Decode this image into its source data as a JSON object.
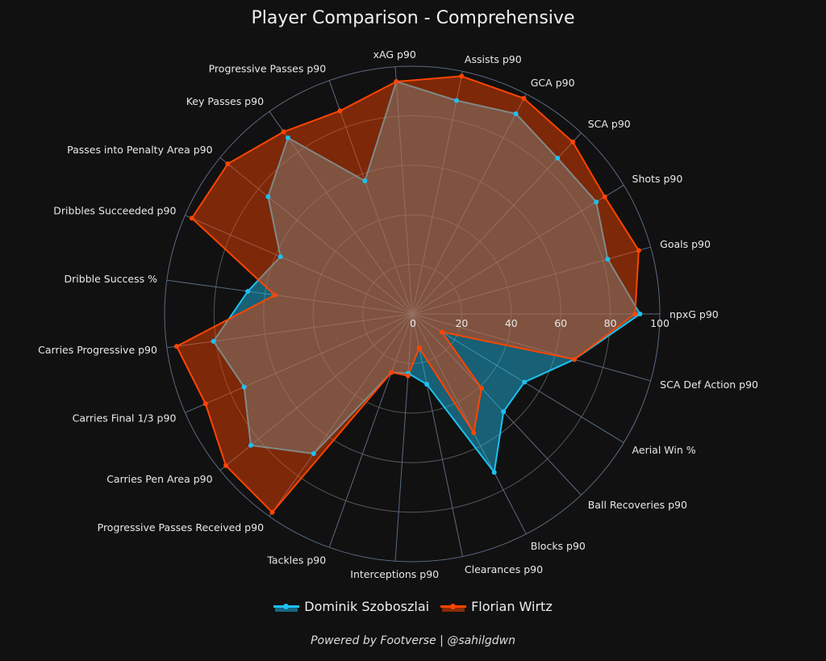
{
  "chart_data": {
    "type": "radar",
    "title": "Player Comparison - Comprehensive",
    "axes": [
      "npxG p90",
      "Goals p90",
      "Shots p90",
      "SCA p90",
      "GCA p90",
      "Assists p90",
      "xAG p90",
      "Progressive Passes p90",
      "Key Passes p90",
      "Passes into Penalty Area p90",
      "Dribbles Succeeded p90",
      "Dribble Success %",
      "Carries Progressive p90",
      "Carries Final 1/3 p90",
      "Carries Pen Area p90",
      "Progressive Passes Received p90",
      "Tackles p90",
      "Interceptions p90",
      "Clearances p90",
      "Blocks p90",
      "Ball Recoveries p90",
      "Aerial Win %",
      "SCA Def Action p90"
    ],
    "radial_ticks": [
      "0",
      "20",
      "40",
      "60",
      "80",
      "100"
    ],
    "rlim": [
      0,
      100
    ],
    "series": [
      {
        "name": "Dominik Szoboszlai",
        "color": "#1ec0f0",
        "values": [
          92,
          82,
          87,
          86,
          91,
          88,
          94,
          57,
          87,
          75,
          58,
          67,
          81,
          74,
          84,
          69,
          25,
          24,
          29,
          72,
          54,
          53,
          68
        ]
      },
      {
        "name": "Florian Wirtz",
        "color": "#ff4500",
        "values": [
          90,
          95,
          91,
          95,
          98,
          98,
          94,
          87,
          90,
          96,
          97,
          56,
          96,
          91,
          97,
          98,
          25,
          25,
          14,
          54,
          41,
          14,
          68
        ]
      }
    ],
    "legend_position": "bottom-center",
    "footer": "Powered by Footverse | @sahilgdwn"
  }
}
